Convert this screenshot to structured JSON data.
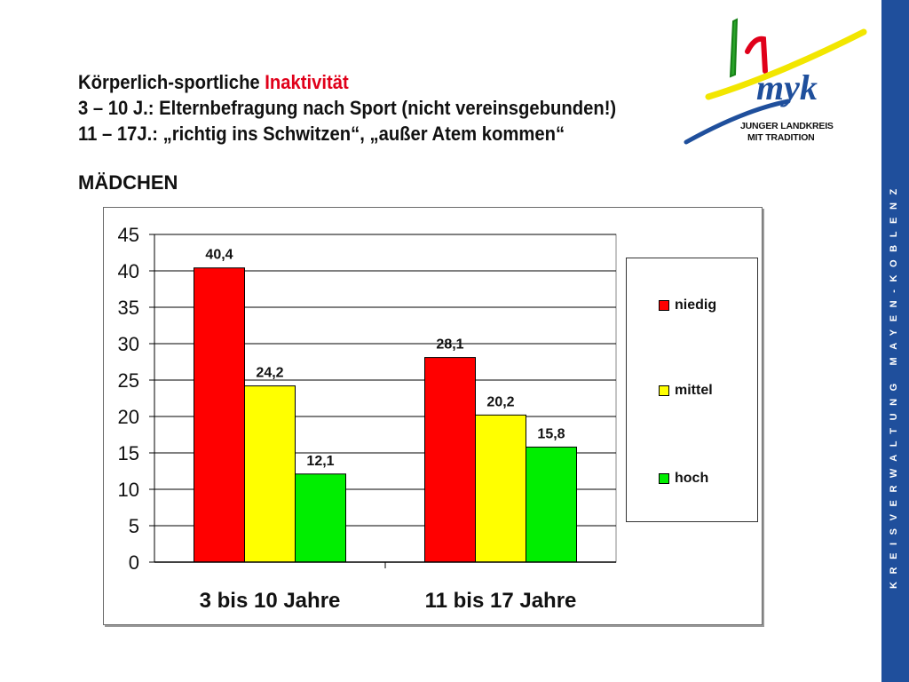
{
  "header": {
    "line1_prefix": "Körperlich-sportliche ",
    "line1_accent": "Inaktivität",
    "line2": "3 – 10 J.: Elternbefragung nach Sport (nicht vereinsgebunden!)",
    "line3": "11 – 17J.: „richtig ins Schwitzen“, „außer Atem kommen“",
    "subhead": "MÄDCHEN",
    "accent_color": "#e0001a"
  },
  "logo": {
    "mark": "myk",
    "tagline1": "JUNGER LANDKREIS",
    "tagline2": "MIT TRADITION"
  },
  "sidebar": {
    "text": "KREISVERWALTUNG MAYEN-KOBLENZ",
    "color": "#1f4f9c"
  },
  "chart_data": {
    "type": "bar",
    "categories": [
      "3 bis 10 Jahre",
      "11 bis 17 Jahre"
    ],
    "series": [
      {
        "name": "niedig",
        "values": [
          40.4,
          28.1
        ],
        "labels": [
          "40,4",
          "28,1"
        ],
        "color": "#ff0000"
      },
      {
        "name": "mittel",
        "values": [
          24.2,
          20.2
        ],
        "labels": [
          "24,2",
          "20,2"
        ],
        "color": "#ffff00"
      },
      {
        "name": "hoch",
        "values": [
          12.1,
          15.8
        ],
        "labels": [
          "12,1",
          "15,8"
        ],
        "color": "#00ee00"
      }
    ],
    "ylim": [
      0,
      45
    ],
    "yticks": [
      "0",
      "5",
      "10",
      "15",
      "20",
      "25",
      "30",
      "35",
      "40",
      "45"
    ],
    "ytick_values": [
      0,
      5,
      10,
      15,
      20,
      25,
      30,
      35,
      40,
      45
    ],
    "grid": true,
    "legend": "right",
    "title": "",
    "xlabel": "",
    "ylabel": ""
  }
}
